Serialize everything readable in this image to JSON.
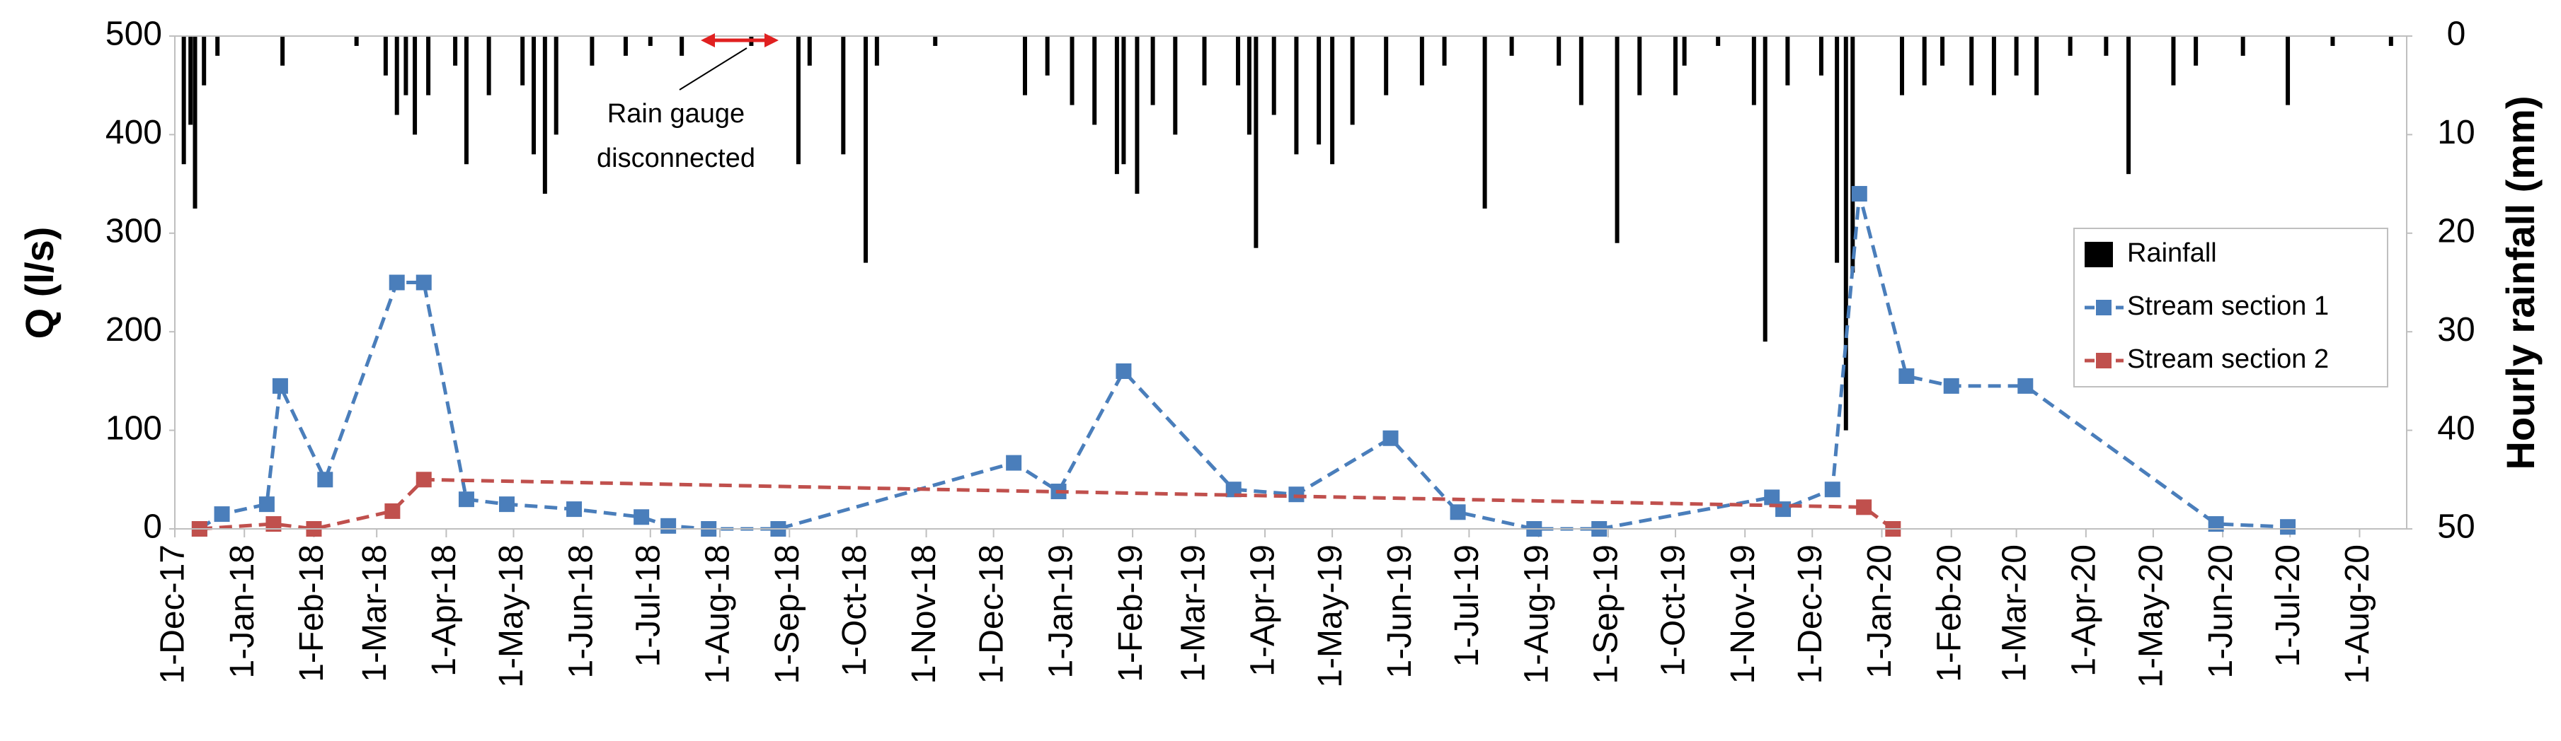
{
  "chart_data": {
    "type": "line",
    "ylabel": "Q (l/s)",
    "y2label": "Hourly rainfall (mm)",
    "xlim": [
      "2017-12-01",
      "2020-08-22"
    ],
    "ylim": [
      0,
      500
    ],
    "yticks": [
      0,
      100,
      200,
      300,
      400,
      500
    ],
    "y2lim": [
      0,
      50
    ],
    "y2_reversed": true,
    "y2ticks": [
      0,
      10,
      20,
      30,
      40,
      50
    ],
    "xticks": [
      {
        "value": "2017-12-01",
        "label": "1-Dec-17"
      },
      {
        "value": "2018-01-01",
        "label": "1-Jan-18"
      },
      {
        "value": "2018-02-01",
        "label": "1-Feb-18"
      },
      {
        "value": "2018-03-01",
        "label": "1-Mar-18"
      },
      {
        "value": "2018-04-01",
        "label": "1-Apr-18"
      },
      {
        "value": "2018-05-01",
        "label": "1-May-18"
      },
      {
        "value": "2018-06-01",
        "label": "1-Jun-18"
      },
      {
        "value": "2018-07-01",
        "label": "1-Jul-18"
      },
      {
        "value": "2018-08-01",
        "label": "1-Aug-18"
      },
      {
        "value": "2018-09-01",
        "label": "1-Sep-18"
      },
      {
        "value": "2018-10-01",
        "label": "1-Oct-18"
      },
      {
        "value": "2018-11-01",
        "label": "1-Nov-18"
      },
      {
        "value": "2018-12-01",
        "label": "1-Dec-18"
      },
      {
        "value": "2019-01-01",
        "label": "1-Jan-19"
      },
      {
        "value": "2019-02-01",
        "label": "1-Feb-19"
      },
      {
        "value": "2019-03-01",
        "label": "1-Mar-19"
      },
      {
        "value": "2019-04-01",
        "label": "1-Apr-19"
      },
      {
        "value": "2019-05-01",
        "label": "1-May-19"
      },
      {
        "value": "2019-06-01",
        "label": "1-Jun-19"
      },
      {
        "value": "2019-07-01",
        "label": "1-Jul-19"
      },
      {
        "value": "2019-08-01",
        "label": "1-Aug-19"
      },
      {
        "value": "2019-09-01",
        "label": "1-Sep-19"
      },
      {
        "value": "2019-10-01",
        "label": "1-Oct-19"
      },
      {
        "value": "2019-11-01",
        "label": "1-Nov-19"
      },
      {
        "value": "2019-12-01",
        "label": "1-Dec-19"
      },
      {
        "value": "2020-01-01",
        "label": "1-Jan-20"
      },
      {
        "value": "2020-02-01",
        "label": "1-Feb-20"
      },
      {
        "value": "2020-03-01",
        "label": "1-Mar-20"
      },
      {
        "value": "2020-04-01",
        "label": "1-Apr-20"
      },
      {
        "value": "2020-05-01",
        "label": "1-May-20"
      },
      {
        "value": "2020-06-01",
        "label": "1-Jun-20"
      },
      {
        "value": "2020-07-01",
        "label": "1-Jul-20"
      },
      {
        "value": "2020-08-01",
        "label": "1-Aug-20"
      }
    ],
    "annotation": [
      "Rain gauge",
      "disconnected"
    ],
    "legend": "right",
    "series": [
      {
        "name": "Rainfall",
        "type": "bar",
        "axis": "y2",
        "color": "#000000",
        "x": [
          "2017-12-05",
          "2017-12-08",
          "2017-12-10",
          "2017-12-14",
          "2017-12-20",
          "2018-01-18",
          "2018-02-20",
          "2018-03-05",
          "2018-03-10",
          "2018-03-14",
          "2018-03-18",
          "2018-03-24",
          "2018-04-05",
          "2018-04-10",
          "2018-04-20",
          "2018-05-05",
          "2018-05-10",
          "2018-05-15",
          "2018-05-20",
          "2018-06-05",
          "2018-06-20",
          "2018-07-01",
          "2018-07-15",
          "2018-08-15",
          "2018-09-05",
          "2018-09-10",
          "2018-09-25",
          "2018-10-05",
          "2018-10-10",
          "2018-11-05",
          "2018-12-15",
          "2018-12-25",
          "2019-01-05",
          "2019-01-15",
          "2019-01-25",
          "2019-01-28",
          "2019-02-03",
          "2019-02-10",
          "2019-02-20",
          "2019-03-05",
          "2019-03-20",
          "2019-03-25",
          "2019-03-28",
          "2019-04-05",
          "2019-04-15",
          "2019-04-25",
          "2019-05-01",
          "2019-05-10",
          "2019-05-25",
          "2019-06-10",
          "2019-06-20",
          "2019-07-08",
          "2019-07-20",
          "2019-08-10",
          "2019-08-20",
          "2019-09-05",
          "2019-09-15",
          "2019-10-01",
          "2019-10-05",
          "2019-10-20",
          "2019-11-05",
          "2019-11-10",
          "2019-11-20",
          "2019-12-05",
          "2019-12-12",
          "2019-12-16",
          "2019-12-19",
          "2020-01-10",
          "2020-01-20",
          "2020-01-28",
          "2020-02-10",
          "2020-02-20",
          "2020-03-01",
          "2020-03-10",
          "2020-03-25",
          "2020-04-10",
          "2020-04-20",
          "2020-05-10",
          "2020-05-20",
          "2020-06-10",
          "2020-06-30",
          "2020-07-20",
          "2020-08-15"
        ],
        "values": [
          13,
          9,
          17.5,
          5,
          2,
          3,
          1,
          4,
          8,
          6,
          10,
          6,
          3,
          13,
          6,
          5,
          12,
          16,
          10,
          3,
          2,
          1,
          2,
          1,
          13,
          3,
          12,
          23,
          3,
          1,
          6,
          4,
          7,
          9,
          14,
          13,
          16,
          7,
          10,
          5,
          5,
          10,
          21.5,
          8,
          12,
          11,
          13,
          9,
          6,
          5,
          3,
          17.5,
          2,
          3,
          7,
          21,
          6,
          6,
          3,
          1,
          7,
          31,
          5,
          4,
          23,
          40,
          24,
          6,
          5,
          3,
          5,
          6,
          4,
          6,
          2,
          2,
          14,
          5,
          3,
          2,
          7,
          1,
          1
        ]
      },
      {
        "name": "Stream section 1",
        "color": "#4a7ebb",
        "x": [
          "2017-12-12",
          "2017-12-22",
          "2018-01-11",
          "2018-01-17",
          "2018-02-06",
          "2018-03-10",
          "2018-03-22",
          "2018-04-10",
          "2018-04-28",
          "2018-05-28",
          "2018-06-27",
          "2018-07-09",
          "2018-07-27",
          "2018-08-27",
          "2018-12-10",
          "2018-12-30",
          "2019-01-28",
          "2019-03-18",
          "2019-04-15",
          "2019-05-27",
          "2019-06-26",
          "2019-07-30",
          "2019-08-28",
          "2019-11-13",
          "2019-11-18",
          "2019-12-10",
          "2019-12-22",
          "2020-01-12",
          "2020-02-01",
          "2020-03-05",
          "2020-05-29",
          "2020-06-30"
        ],
        "values": [
          0,
          15,
          25,
          145,
          50,
          250,
          250,
          30,
          25,
          20,
          12,
          3,
          0,
          0,
          67,
          38,
          160,
          40,
          35,
          92,
          17,
          0,
          0,
          32,
          20,
          40,
          340,
          155,
          145,
          145,
          5,
          2
        ]
      },
      {
        "name": "Stream section 2",
        "color": "#c0504d",
        "x": [
          "2017-12-12",
          "2018-01-14",
          "2018-02-01",
          "2018-03-08",
          "2018-03-22",
          "2019-12-24",
          "2020-01-06"
        ],
        "values": [
          0,
          5,
          0,
          18,
          50,
          22,
          0
        ]
      }
    ]
  }
}
